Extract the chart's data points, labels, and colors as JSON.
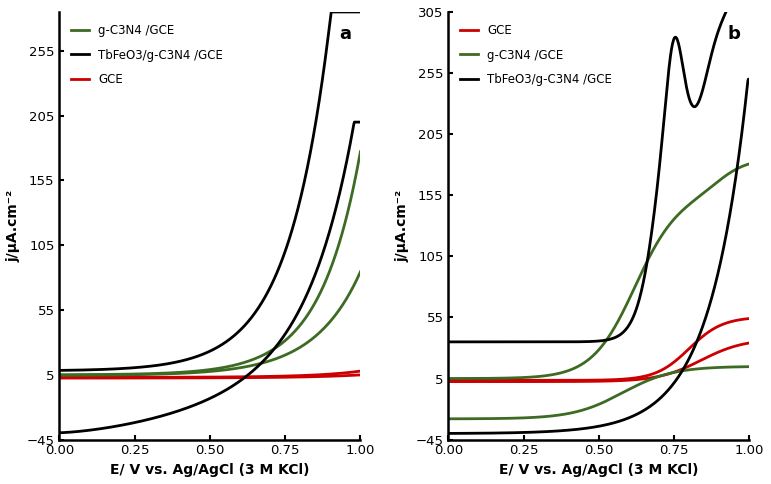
{
  "panel_a": {
    "title": "a",
    "xlabel": "E/ V vs. Ag/AgCl (3 M KCl)",
    "ylabel": "j/μA.cm⁻²",
    "xlim": [
      0,
      1.0
    ],
    "ylim": [
      -45,
      285
    ],
    "yticks": [
      -45,
      5,
      55,
      105,
      155,
      205,
      255
    ],
    "xticks": [
      0,
      0.25,
      0.5,
      0.75,
      1
    ]
  },
  "panel_b": {
    "title": "b",
    "xlabel": "E/ V vs. Ag/AgCl (3 M KCl)",
    "ylabel": "j/μA.cm⁻²",
    "xlim": [
      0,
      1.0
    ],
    "ylim": [
      -45,
      305
    ],
    "yticks": [
      -45,
      5,
      55,
      105,
      155,
      205,
      255,
      305
    ],
    "xticks": [
      0,
      0.25,
      0.5,
      0.75,
      1
    ]
  },
  "colors": {
    "green": "#3d6b23",
    "black": "#000000",
    "red": "#cc0000"
  },
  "linewidth": 2.0
}
